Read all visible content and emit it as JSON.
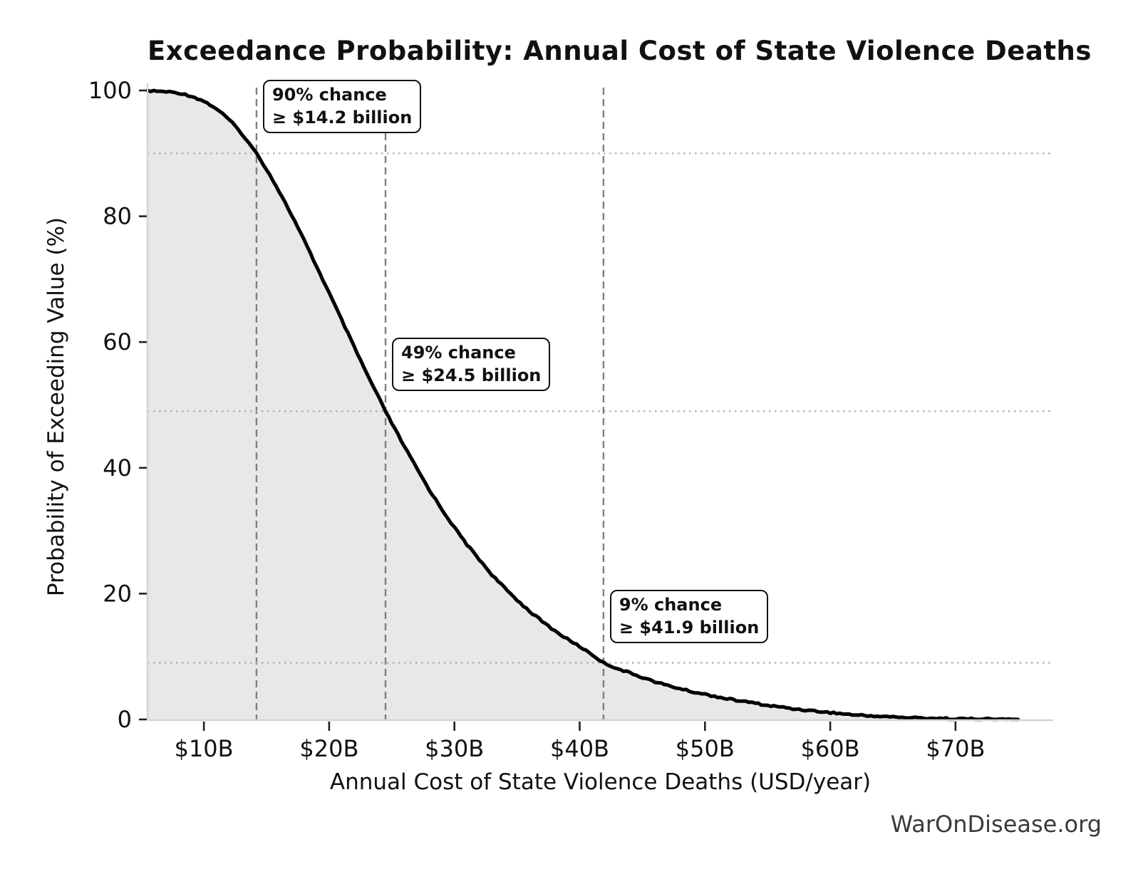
{
  "title": "Exceedance Probability: Annual Cost of State Violence Deaths",
  "watermark": "WarOnDisease.org",
  "axes": {
    "xlabel": "Annual Cost of State Violence Deaths (USD/year)",
    "ylabel": "Probability of Exceeding Value (%)"
  },
  "chart_data": {
    "type": "line",
    "title": "Exceedance Probability: Annual Cost of State Violence Deaths",
    "xlabel": "Annual Cost of State Violence Deaths (USD/year)",
    "ylabel": "Probability of Exceeding Value (%)",
    "x_unit": "billions of USD per year",
    "xlim_billion": [
      5.5,
      77.8
    ],
    "ylim_pct": [
      0,
      100
    ],
    "grid": "guide lines only at annotated probabilities",
    "legend": "none",
    "x_ticks": [
      {
        "value": 10,
        "label": "$10B"
      },
      {
        "value": 20,
        "label": "$20B"
      },
      {
        "value": 30,
        "label": "$30B"
      },
      {
        "value": 40,
        "label": "$40B"
      },
      {
        "value": 50,
        "label": "$50B"
      },
      {
        "value": 60,
        "label": "$60B"
      },
      {
        "value": 70,
        "label": "$70B"
      }
    ],
    "y_ticks": [
      0,
      20,
      40,
      60,
      80,
      100
    ],
    "series": [
      {
        "name": "Exceedance probability of annual cost",
        "style": "thick black empirical survival curve with light gray fill below",
        "points_value_billion_vs_prob_pct": [
          [
            5.5,
            100
          ],
          [
            6,
            99.9
          ],
          [
            7,
            99.8
          ],
          [
            8,
            99.6
          ],
          [
            9,
            99.1
          ],
          [
            10,
            98.3
          ],
          [
            11,
            97.1
          ],
          [
            12,
            95.4
          ],
          [
            13,
            93.2
          ],
          [
            14.2,
            90
          ],
          [
            15,
            87.5
          ],
          [
            16,
            84
          ],
          [
            17,
            80.2
          ],
          [
            18,
            76.2
          ],
          [
            19,
            72
          ],
          [
            20,
            67.8
          ],
          [
            21,
            63.5
          ],
          [
            22,
            59.2
          ],
          [
            23,
            55
          ],
          [
            24,
            51
          ],
          [
            24.5,
            49
          ],
          [
            25,
            47.1
          ],
          [
            26,
            43.4
          ],
          [
            27,
            39.9
          ],
          [
            28,
            36.5
          ],
          [
            29,
            33.4
          ],
          [
            30,
            30.5
          ],
          [
            31,
            27.8
          ],
          [
            32,
            25.4
          ],
          [
            33,
            23
          ],
          [
            34,
            20.9
          ],
          [
            35,
            19
          ],
          [
            36,
            17.2
          ],
          [
            37,
            15.6
          ],
          [
            38,
            14.1
          ],
          [
            39,
            12.8
          ],
          [
            40,
            11.6
          ],
          [
            41,
            10.3
          ],
          [
            41.9,
            9
          ],
          [
            43,
            8.1
          ],
          [
            44,
            7.4
          ],
          [
            45,
            6.7
          ],
          [
            46,
            6
          ],
          [
            47,
            5.4
          ],
          [
            48,
            4.9
          ],
          [
            49,
            4.4
          ],
          [
            50,
            4
          ],
          [
            51,
            3.6
          ],
          [
            52,
            3.2
          ],
          [
            53,
            2.9
          ],
          [
            54,
            2.6
          ],
          [
            55,
            2.2
          ],
          [
            56,
            2
          ],
          [
            57,
            1.7
          ],
          [
            58,
            1.5
          ],
          [
            59,
            1.3
          ],
          [
            60,
            1.1
          ],
          [
            61,
            0.9
          ],
          [
            62,
            0.7
          ],
          [
            63,
            0.6
          ],
          [
            64,
            0.5
          ],
          [
            65,
            0.4
          ],
          [
            66,
            0.3
          ],
          [
            67,
            0.25
          ],
          [
            68,
            0.2
          ],
          [
            69,
            0.15
          ],
          [
            70,
            0.1
          ],
          [
            71,
            0.08
          ],
          [
            72,
            0.06
          ],
          [
            73,
            0.04
          ],
          [
            74,
            0.02
          ],
          [
            75,
            0
          ]
        ]
      }
    ],
    "annotations": [
      {
        "prob_pct": 90,
        "value_billion": 14.2,
        "lines": [
          "90% chance",
          "≥ $14.2 billion"
        ]
      },
      {
        "prob_pct": 49,
        "value_billion": 24.5,
        "lines": [
          "49% chance",
          "≥ $24.5 billion"
        ]
      },
      {
        "prob_pct": 9,
        "value_billion": 41.9,
        "lines": [
          "9% chance",
          "≥ $41.9 billion"
        ]
      }
    ],
    "colors": {
      "curve": "#000000",
      "fill": "#e8e8e8",
      "dashed_guide": "#7f7f7f",
      "dotted_guide": "#ababab",
      "spine": "#d4d4d4",
      "tick_mark": "#222222",
      "tick_label": "#111111",
      "watermark": "#3a3a3a"
    }
  }
}
